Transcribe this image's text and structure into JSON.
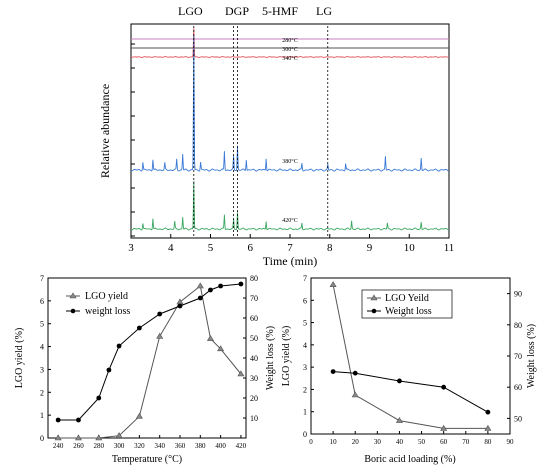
{
  "chart_data": [
    {
      "type": "line",
      "xlabel": "Time (min)",
      "ylabel": "Relative abundance",
      "xlim": [
        3,
        11
      ],
      "x_ticks": [
        3,
        4,
        5,
        6,
        7,
        8,
        9,
        10,
        11
      ],
      "marker_lines": [
        {
          "label": "LGO",
          "x": 4.58
        },
        {
          "label": "DGP",
          "x": 5.58
        },
        {
          "label": "5-HMF",
          "x": 5.68
        },
        {
          "label": "LG",
          "x": 7.95
        }
      ],
      "series": [
        {
          "name": "280°C",
          "color": "#c77fc0",
          "peaks": []
        },
        {
          "name": "300°C",
          "color": "#555555",
          "peaks": []
        },
        {
          "name": "340°C",
          "color": "#e0505a",
          "peaks": [
            {
              "x": 4.58,
              "h": 0.6
            }
          ]
        },
        {
          "name": "380°C",
          "color": "#3a7ad6",
          "peaks": [
            {
              "x": 3.3,
              "h": 0.06
            },
            {
              "x": 3.55,
              "h": 0.08
            },
            {
              "x": 3.85,
              "h": 0.05
            },
            {
              "x": 4.15,
              "h": 0.08
            },
            {
              "x": 4.3,
              "h": 0.12
            },
            {
              "x": 4.58,
              "h": 1.0
            },
            {
              "x": 4.75,
              "h": 0.06
            },
            {
              "x": 5.35,
              "h": 0.14
            },
            {
              "x": 5.58,
              "h": 0.1
            },
            {
              "x": 5.68,
              "h": 0.18
            },
            {
              "x": 5.9,
              "h": 0.08
            },
            {
              "x": 6.4,
              "h": 0.09
            },
            {
              "x": 7.3,
              "h": 0.05
            },
            {
              "x": 7.95,
              "h": 0.04
            },
            {
              "x": 8.4,
              "h": 0.05
            },
            {
              "x": 9.4,
              "h": 0.1
            },
            {
              "x": 10.3,
              "h": 0.09
            }
          ]
        },
        {
          "name": "420°C",
          "color": "#3aa860",
          "peaks": [
            {
              "x": 3.3,
              "h": 0.05
            },
            {
              "x": 3.55,
              "h": 0.09
            },
            {
              "x": 4.1,
              "h": 0.06
            },
            {
              "x": 4.3,
              "h": 0.1
            },
            {
              "x": 4.58,
              "h": 0.4
            },
            {
              "x": 5.35,
              "h": 0.12
            },
            {
              "x": 5.58,
              "h": 0.08
            },
            {
              "x": 5.68,
              "h": 0.14
            },
            {
              "x": 6.4,
              "h": 0.07
            },
            {
              "x": 7.3,
              "h": 0.05
            },
            {
              "x": 8.55,
              "h": 0.07
            },
            {
              "x": 9.45,
              "h": 0.05
            },
            {
              "x": 10.3,
              "h": 0.06
            }
          ]
        }
      ]
    },
    {
      "type": "line",
      "xlabel": "Temperature (°C)",
      "ylabel": "LGO yield (%)",
      "y2label": "Weight loss (%)",
      "xlim": [
        230,
        425
      ],
      "ylim": [
        0,
        7
      ],
      "y2lim": [
        0,
        80
      ],
      "x_ticks": [
        240,
        260,
        280,
        300,
        320,
        340,
        360,
        380,
        400,
        420
      ],
      "y_ticks": [
        0,
        1,
        2,
        3,
        4,
        5,
        6,
        7
      ],
      "y2_ticks": [
        10,
        20,
        30,
        40,
        50,
        60,
        70,
        80
      ],
      "legend_position": "top-left",
      "series": [
        {
          "name": "LGO yield",
          "axis": "left",
          "marker": "triangle",
          "x": [
            240,
            260,
            280,
            300,
            320,
            340,
            360,
            380,
            390,
            400,
            420
          ],
          "values": [
            0.0,
            0.0,
            0.0,
            0.1,
            0.95,
            4.45,
            5.95,
            6.65,
            4.35,
            3.9,
            2.8
          ]
        },
        {
          "name": "weight loss",
          "axis": "right",
          "marker": "circle",
          "x": [
            240,
            260,
            280,
            290,
            300,
            320,
            340,
            360,
            380,
            390,
            400,
            420
          ],
          "values": [
            9,
            9,
            20,
            34,
            46,
            55,
            62,
            66,
            70,
            74,
            76,
            77
          ]
        }
      ]
    },
    {
      "type": "line",
      "xlabel": "Boric acid loading (%)",
      "ylabel": "LGO yield (%)",
      "y2label": "Weight loss (%)",
      "xlim": [
        0,
        90
      ],
      "ylim": [
        0,
        7
      ],
      "y2lim": [
        45,
        95
      ],
      "x_ticks": [
        0,
        10,
        20,
        30,
        40,
        50,
        60,
        70,
        80,
        90
      ],
      "y_ticks": [
        0,
        1,
        2,
        3,
        4,
        5,
        6,
        7
      ],
      "y2_ticks": [
        50,
        60,
        70,
        80,
        90
      ],
      "legend_position": "top-center",
      "series": [
        {
          "name": "LGO Yeild",
          "axis": "left",
          "marker": "triangle",
          "x": [
            10,
            20,
            40,
            60,
            80
          ],
          "values": [
            6.7,
            1.75,
            0.6,
            0.25,
            0.25
          ]
        },
        {
          "name": "Weight loss",
          "axis": "right",
          "marker": "circle",
          "x": [
            10,
            20,
            40,
            60,
            80
          ],
          "values": [
            65,
            64.5,
            62,
            60,
            52
          ]
        }
      ]
    }
  ]
}
